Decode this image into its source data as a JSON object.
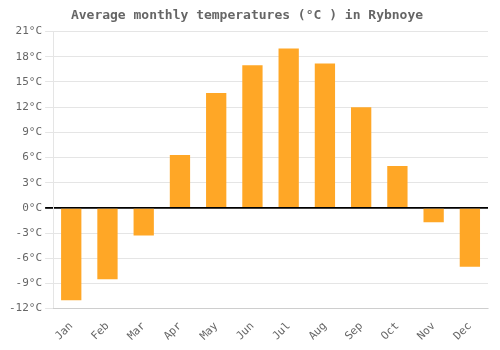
{
  "chart_data": {
    "type": "bar",
    "title": "Average monthly temperatures (°C ) in Rybnoye",
    "categories": [
      "Jan",
      "Feb",
      "Mar",
      "Apr",
      "May",
      "Jun",
      "Jul",
      "Aug",
      "Sep",
      "Oct",
      "Nov",
      "Dec"
    ],
    "values": [
      -11.0,
      -8.5,
      -3.3,
      6.3,
      13.7,
      17.0,
      19.0,
      17.2,
      12.0,
      5.0,
      -1.7,
      -7.0
    ],
    "color": "#FFA726",
    "ylim": [
      -12,
      21
    ],
    "yticks": [
      {
        "value": -12,
        "label": "-12°C"
      },
      {
        "value": -9,
        "label": "-9°C"
      },
      {
        "value": -6,
        "label": "-6°C"
      },
      {
        "value": -3,
        "label": "-3°C"
      },
      {
        "value": 0,
        "label": "0°C"
      },
      {
        "value": 3,
        "label": "3°C"
      },
      {
        "value": 6,
        "label": "6°C"
      },
      {
        "value": 9,
        "label": "9°C"
      },
      {
        "value": 12,
        "label": "12°C"
      },
      {
        "value": 15,
        "label": "15°C"
      },
      {
        "value": 18,
        "label": "18°C"
      },
      {
        "value": 21,
        "label": "21°C"
      }
    ],
    "grid": true
  }
}
